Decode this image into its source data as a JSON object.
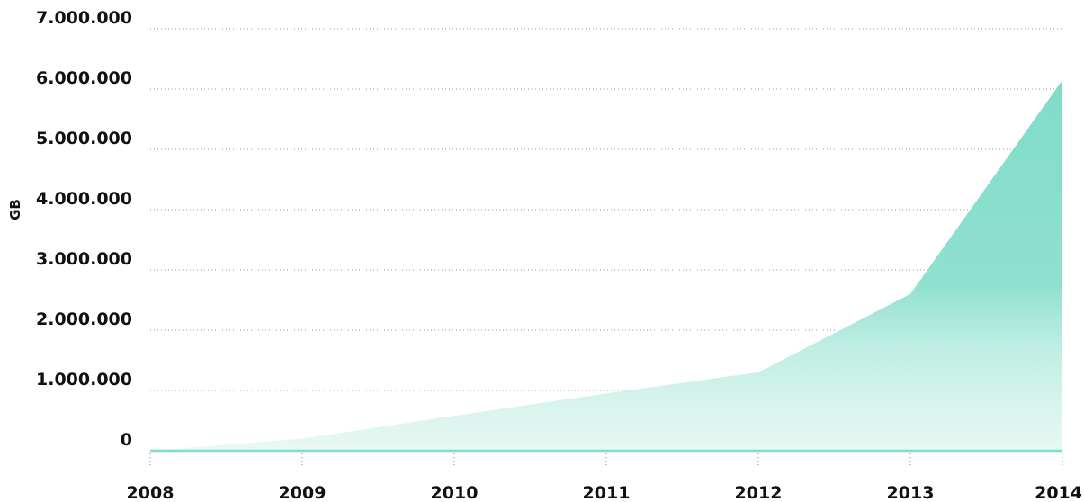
{
  "chart_data": {
    "type": "area",
    "title": "",
    "xlabel": "",
    "ylabel": "GB",
    "categories": [
      "2008",
      "2009",
      "2010",
      "2011",
      "2012",
      "2013",
      "2014"
    ],
    "series": [
      {
        "values": [
          0,
          200000,
          580000,
          950000,
          1300000,
          2600000,
          6150000
        ]
      }
    ],
    "yticks": [
      0,
      1000000,
      2000000,
      3000000,
      4000000,
      5000000,
      6000000,
      7000000
    ],
    "ytick_labels": [
      "0",
      "1.000.000",
      "2.000.000",
      "3.000.000",
      "4.000.000",
      "5.000.000",
      "6.000.000",
      "7.000.000"
    ],
    "ylim": [
      0,
      7000000
    ],
    "grid": true,
    "legend": "none",
    "colors": {
      "area_top": "#7fdcc8",
      "area_bottom": "#e6f7f2",
      "baseline": "#7fdcc8",
      "grid": "#9a9a9a",
      "text": "#111111"
    }
  }
}
